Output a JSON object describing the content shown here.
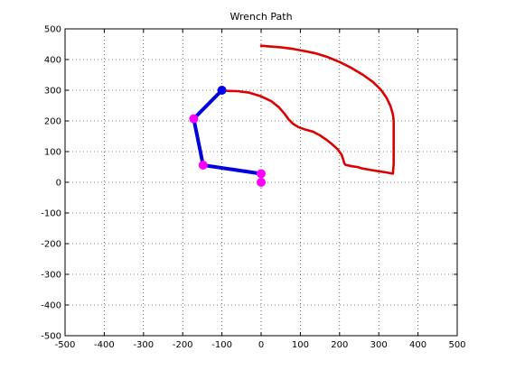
{
  "chart_data": {
    "type": "line",
    "title": "Wrench Path",
    "xlabel": "",
    "ylabel": "",
    "xlim": [
      -500,
      500
    ],
    "ylim": [
      -500,
      500
    ],
    "xticks": [
      -500,
      -400,
      -300,
      -200,
      -100,
      0,
      100,
      200,
      300,
      400,
      500
    ],
    "yticks": [
      -500,
      -400,
      -300,
      -200,
      -100,
      0,
      100,
      200,
      300,
      400,
      500
    ],
    "grid": true,
    "grid_style": "dotted",
    "series": [
      {
        "kind": "path",
        "color": "#dd0000",
        "points": [
          [
            0,
            445
          ],
          [
            20,
            443
          ],
          [
            50,
            440
          ],
          [
            80,
            435
          ],
          [
            110,
            428
          ],
          [
            140,
            420
          ],
          [
            170,
            408
          ],
          [
            200,
            392
          ],
          [
            230,
            373
          ],
          [
            260,
            350
          ],
          [
            285,
            327
          ],
          [
            305,
            302
          ],
          [
            320,
            275
          ],
          [
            330,
            248
          ],
          [
            336,
            222
          ],
          [
            338,
            200
          ],
          [
            338,
            150
          ],
          [
            338,
            100
          ],
          [
            338,
            60
          ],
          [
            336,
            28
          ],
          [
            320,
            32
          ],
          [
            300,
            36
          ],
          [
            280,
            40
          ],
          [
            258,
            45
          ],
          [
            245,
            50
          ],
          [
            232,
            52
          ],
          [
            222,
            55
          ],
          [
            215,
            57
          ],
          [
            212,
            62
          ],
          [
            210,
            72
          ],
          [
            205,
            90
          ],
          [
            195,
            108
          ],
          [
            180,
            125
          ],
          [
            165,
            140
          ],
          [
            150,
            153
          ],
          [
            132,
            165
          ],
          [
            110,
            173
          ],
          [
            95,
            180
          ],
          [
            82,
            190
          ],
          [
            70,
            205
          ],
          [
            60,
            223
          ],
          [
            45,
            245
          ],
          [
            25,
            265
          ],
          [
            0,
            280
          ],
          [
            -30,
            292
          ],
          [
            -60,
            297
          ],
          [
            -88,
            298
          ]
        ]
      },
      {
        "kind": "arm",
        "color": "#0000dd",
        "points": [
          [
            -100,
            300
          ],
          [
            -172,
            207
          ],
          [
            -148,
            56
          ],
          [
            0,
            28
          ]
        ]
      },
      {
        "kind": "markers",
        "color": "#ff00ff",
        "points": [
          [
            -172,
            207
          ],
          [
            -148,
            56
          ],
          [
            0,
            28
          ],
          [
            0,
            0
          ]
        ]
      },
      {
        "kind": "markers",
        "color": "#0000ee",
        "points": [
          [
            -100,
            300
          ]
        ]
      }
    ]
  }
}
